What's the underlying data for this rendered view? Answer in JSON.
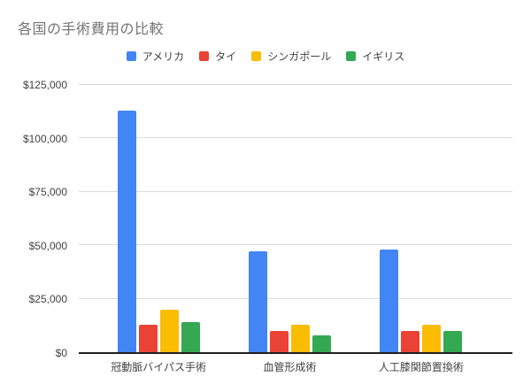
{
  "chart_data": {
    "type": "bar",
    "title": "各国の手術費用の比較",
    "categories": [
      "冠動脈バイパス手術",
      "血管形成術",
      "人工膝関節置換術"
    ],
    "series": [
      {
        "name": "アメリカ",
        "color": "#4285F4",
        "values": [
          113000,
          47000,
          48000
        ]
      },
      {
        "name": "タイ",
        "color": "#EA4335",
        "values": [
          13000,
          10000,
          10000
        ]
      },
      {
        "name": "シンガポール",
        "color": "#FBBC04",
        "values": [
          20000,
          13000,
          13000
        ]
      },
      {
        "name": "イギリス",
        "color": "#34A853",
        "values": [
          14000,
          8000,
          10000
        ]
      }
    ],
    "xlabel": "",
    "ylabel": "",
    "ylim": [
      0,
      125000
    ],
    "ytick_step": 25000,
    "ytick_labels": [
      "$0",
      "$25,000",
      "$50,000",
      "$75,000",
      "$100,000",
      "$125,000"
    ],
    "grid": true,
    "legend_position": "top"
  },
  "colors": {
    "background": "#ffffff",
    "title_text": "#757575",
    "axis_text": "#424242",
    "gridline": "#dadada",
    "axis_line": "#1f1f1f"
  }
}
